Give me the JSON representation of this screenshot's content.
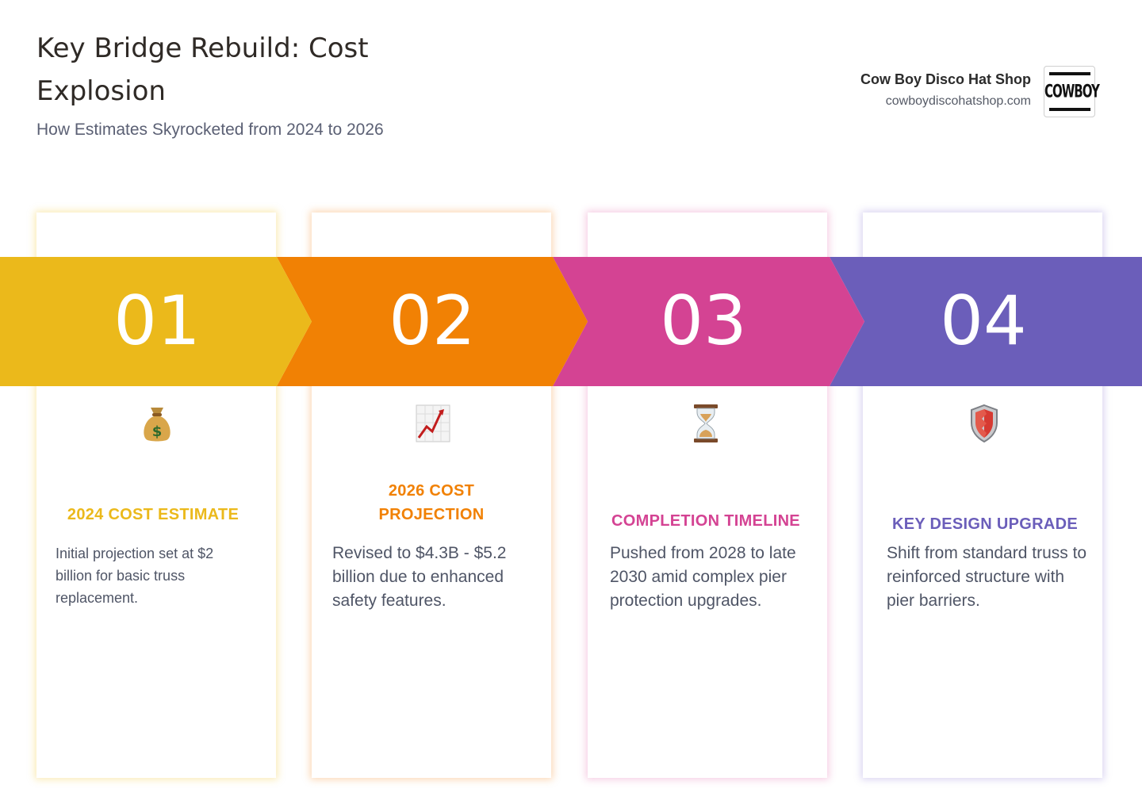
{
  "header": {
    "title": "Key Bridge Rebuild: Cost Explosion",
    "subtitle": "How Estimates Skyrocketed from 2024 to 2026"
  },
  "brand": {
    "name": "Cow Boy Disco Hat Shop",
    "url": "cowboydiscohatshop.com",
    "logo_text": "COWBOY"
  },
  "steps": [
    {
      "number": "01",
      "color": "#EBB91B",
      "icon": "money-bag-icon",
      "title": "2024 COST ESTIMATE",
      "text": "Initial projection set at $2 billion for basic truss replacement."
    },
    {
      "number": "02",
      "color": "#F18104",
      "icon": "chart-increasing-icon",
      "title": "2026 COST PROJECTION",
      "text": "Revised to $4.3B - $5.2 billion due to enhanced safety features."
    },
    {
      "number": "03",
      "color": "#D44393",
      "icon": "hourglass-icon",
      "title": "COMPLETION TIMELINE",
      "text": "Pushed from 2028 to late 2030 amid complex pier protection upgrades."
    },
    {
      "number": "04",
      "color": "#6B5EBA",
      "icon": "shield-icon",
      "title": "KEY DESIGN UPGRADE",
      "text": "Shift from standard truss to reinforced structure with pier barriers."
    }
  ]
}
